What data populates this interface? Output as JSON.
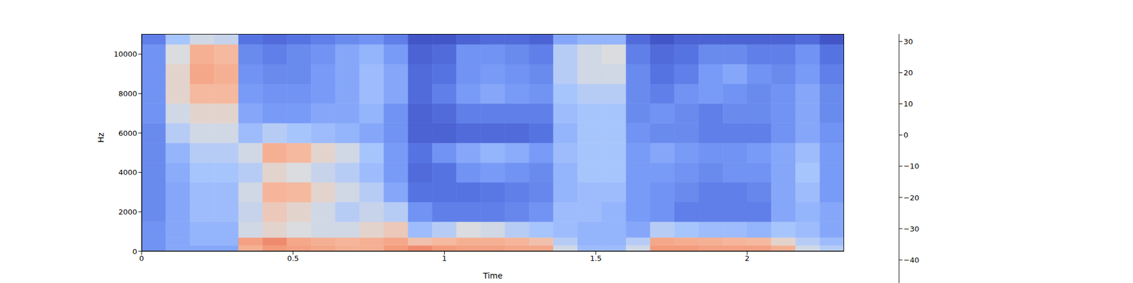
{
  "chart_data": {
    "type": "heatmap",
    "xlabel": "Time",
    "ylabel": "Hz",
    "xlim": [
      0,
      2.32
    ],
    "ylim": [
      0,
      11025
    ],
    "xticks": [
      0,
      0.5,
      1,
      1.5,
      2
    ],
    "yticks": [
      0,
      2000,
      4000,
      6000,
      8000,
      10000
    ],
    "x_bins": [
      0,
      0.08,
      0.16,
      0.24,
      0.32,
      0.4,
      0.48,
      0.56,
      0.64,
      0.72,
      0.8,
      0.88,
      0.96,
      1.04,
      1.12,
      1.2,
      1.28,
      1.36,
      1.44,
      1.52,
      1.6,
      1.68,
      1.76,
      1.84,
      1.92,
      2,
      2.08,
      2.16,
      2.24,
      2.32
    ],
    "y_bins": [
      0,
      300,
      700,
      1500,
      2500,
      3500,
      4500,
      5500,
      6500,
      7500,
      8500,
      9500,
      10500,
      11025
    ],
    "cells": [
      [
        -30,
        -25,
        -25,
        -25,
        5,
        12,
        10,
        8,
        5,
        5,
        12,
        15,
        12,
        10,
        10,
        8,
        8,
        -10,
        -20,
        -20,
        -10,
        12,
        12,
        10,
        10,
        10,
        5,
        -10,
        -15
      ],
      [
        -30,
        -25,
        -22,
        -22,
        10,
        15,
        8,
        5,
        3,
        5,
        8,
        0,
        2,
        5,
        5,
        3,
        0,
        -15,
        -22,
        -22,
        -15,
        8,
        6,
        5,
        3,
        2,
        -5,
        -15,
        -20
      ],
      [
        -30,
        -25,
        -22,
        -22,
        -10,
        -5,
        -8,
        -10,
        -10,
        -5,
        -2,
        -20,
        -15,
        -8,
        -10,
        -15,
        -18,
        -20,
        -22,
        -22,
        -25,
        -15,
        -18,
        -20,
        -20,
        -22,
        -18,
        -20,
        -25
      ],
      [
        -32,
        -25,
        -20,
        -20,
        -12,
        -2,
        -5,
        -10,
        -15,
        -12,
        -15,
        -30,
        -35,
        -35,
        -35,
        -33,
        -30,
        -20,
        -20,
        -22,
        -28,
        -30,
        -35,
        -35,
        -35,
        -35,
        -25,
        -22,
        -25
      ],
      [
        -32,
        -25,
        -20,
        -20,
        -10,
        3,
        2,
        -5,
        -10,
        -15,
        -25,
        -38,
        -38,
        -38,
        -37,
        -35,
        -33,
        -22,
        -20,
        -20,
        -28,
        -30,
        -32,
        -35,
        -35,
        -33,
        -25,
        -20,
        -28
      ],
      [
        -32,
        -24,
        -18,
        -18,
        -15,
        -5,
        -8,
        -12,
        -15,
        -20,
        -28,
        -40,
        -38,
        -30,
        -28,
        -30,
        -32,
        -22,
        -18,
        -18,
        -28,
        -28,
        -30,
        -32,
        -30,
        -30,
        -25,
        -18,
        -28
      ],
      [
        -32,
        -22,
        -15,
        -15,
        -10,
        5,
        2,
        -5,
        -10,
        -18,
        -28,
        -38,
        -30,
        -25,
        -22,
        -24,
        -28,
        -20,
        -18,
        -18,
        -28,
        -25,
        -28,
        -30,
        -30,
        -28,
        -25,
        -20,
        -28
      ],
      [
        -32,
        -15,
        -10,
        -10,
        -20,
        -15,
        -18,
        -20,
        -22,
        -25,
        -30,
        -42,
        -42,
        -40,
        -40,
        -40,
        -38,
        -22,
        -18,
        -18,
        -30,
        -32,
        -32,
        -35,
        -35,
        -35,
        -30,
        -25,
        -30
      ],
      [
        -30,
        -10,
        -5,
        -5,
        -25,
        -28,
        -28,
        -25,
        -25,
        -22,
        -30,
        -42,
        -40,
        -35,
        -35,
        -35,
        -35,
        -20,
        -18,
        -18,
        -32,
        -30,
        -32,
        -35,
        -32,
        -32,
        -30,
        -25,
        -32
      ],
      [
        -30,
        -5,
        2,
        2,
        -28,
        -30,
        -30,
        -28,
        -25,
        -20,
        -25,
        -40,
        -35,
        -28,
        -25,
        -28,
        -30,
        -18,
        -15,
        -15,
        -32,
        -35,
        -30,
        -28,
        -30,
        -32,
        -30,
        -25,
        -32
      ],
      [
        -30,
        -5,
        8,
        5,
        -30,
        -32,
        -32,
        -28,
        -25,
        -20,
        -25,
        -40,
        -38,
        -30,
        -28,
        -30,
        -32,
        -15,
        -10,
        -10,
        -32,
        -38,
        -35,
        -28,
        -25,
        -30,
        -32,
        -28,
        -35
      ],
      [
        -30,
        -8,
        5,
        2,
        -32,
        -35,
        -32,
        -30,
        -25,
        -22,
        -28,
        -42,
        -40,
        -30,
        -30,
        -32,
        -35,
        -15,
        -10,
        -8,
        -35,
        -40,
        -38,
        -32,
        -32,
        -35,
        -35,
        -30,
        -38
      ],
      [
        -35,
        -18,
        -10,
        -12,
        -38,
        -40,
        -38,
        -35,
        -32,
        -30,
        -35,
        -45,
        -45,
        -42,
        -40,
        -40,
        -42,
        -25,
        -22,
        -22,
        -40,
        -45,
        -42,
        -42,
        -42,
        -42,
        -42,
        -40,
        -45
      ]
    ],
    "colorbar": {
      "range": [
        -47.4,
        32.4
      ],
      "ticks": [
        {
          "value": -40,
          "label": "−40"
        },
        {
          "value": -30,
          "label": "−30"
        },
        {
          "value": -20,
          "label": "−20"
        },
        {
          "value": -10,
          "label": "−10"
        },
        0,
        10,
        20,
        30
      ]
    }
  }
}
